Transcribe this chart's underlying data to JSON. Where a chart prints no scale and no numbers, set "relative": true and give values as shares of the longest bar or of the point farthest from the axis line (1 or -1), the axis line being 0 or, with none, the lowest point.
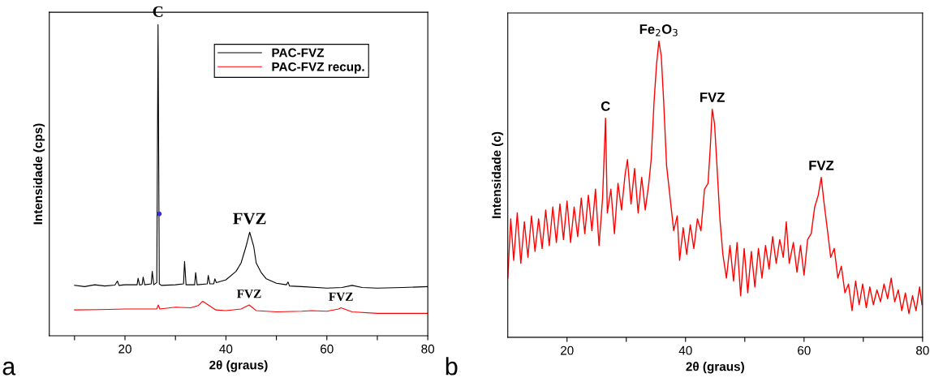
{
  "chart_data": [
    {
      "type": "line",
      "relative": true,
      "xlabel": "2θ (graus)",
      "ylabel": "Intensidade (cps)",
      "xlim": [
        5,
        80
      ],
      "xticks": [
        {
          "value": 10,
          "label": null
        },
        20,
        {
          "value": 30,
          "label": null
        },
        40,
        {
          "value": 50,
          "label": null
        },
        60,
        {
          "value": 70,
          "label": null
        },
        80
      ],
      "grid": false,
      "legend": "top right",
      "marker": "none",
      "line_style": "solid",
      "series": [
        {
          "name": "PAC-FVZ",
          "color": "#000000",
          "x": [
            10,
            12,
            14,
            16,
            18,
            18.5,
            18.8,
            20,
            22.4,
            22.6,
            22.9,
            23.4,
            23.6,
            23.9,
            25.2,
            25.4,
            25.7,
            26.3,
            26.55,
            26.8,
            27.2,
            30,
            31.6,
            31.8,
            32.1,
            33.8,
            34.0,
            34.3,
            36.3,
            36.5,
            36.8,
            37.6,
            37.8,
            38.1,
            40,
            42,
            43,
            44,
            44.7,
            45.5,
            46,
            47,
            48,
            50,
            52,
            52.3,
            52.6,
            55,
            60,
            63,
            65,
            67,
            70,
            75,
            80
          ],
          "values": [
            0.162,
            0.158,
            0.164,
            0.16,
            0.163,
            0.176,
            0.162,
            0.164,
            0.164,
            0.185,
            0.163,
            0.165,
            0.189,
            0.164,
            0.167,
            0.207,
            0.164,
            0.171,
            1.0,
            0.167,
            0.162,
            0.164,
            0.167,
            0.239,
            0.164,
            0.164,
            0.203,
            0.164,
            0.167,
            0.194,
            0.167,
            0.167,
            0.183,
            0.171,
            0.18,
            0.207,
            0.234,
            0.288,
            0.333,
            0.288,
            0.234,
            0.203,
            0.183,
            0.169,
            0.164,
            0.173,
            0.16,
            0.158,
            0.153,
            0.155,
            0.162,
            0.155,
            0.153,
            0.155,
            0.158
          ]
        },
        {
          "name": "PAC-FVZ recup.",
          "color": "#ff0000",
          "x": [
            10,
            15,
            20,
            26.3,
            26.6,
            26.9,
            30,
            33,
            34.5,
            35.4,
            36.5,
            38,
            40,
            43,
            44.6,
            46,
            50,
            55,
            57,
            60,
            62.3,
            62.8,
            65,
            70,
            80
          ],
          "values": [
            0.083,
            0.084,
            0.086,
            0.086,
            0.099,
            0.086,
            0.092,
            0.09,
            0.097,
            0.111,
            0.099,
            0.083,
            0.081,
            0.086,
            0.099,
            0.081,
            0.077,
            0.079,
            0.081,
            0.079,
            0.086,
            0.09,
            0.077,
            0.072,
            0.072
          ]
        },
        {
          "type": "scatter",
          "color": "#3333cc",
          "x": [
            26.8
          ],
          "values": [
            0.392
          ]
        }
      ],
      "annotations": [
        {
          "text": "C",
          "x": 26.55,
          "y": 1.0
        },
        {
          "text": "FVZ",
          "x": 44.7,
          "y": 0.333
        },
        {
          "text": "FVZ",
          "x": 44.6,
          "y": 0.099
        },
        {
          "text": "FVZ",
          "x": 62.8,
          "y": 0.09
        },
        "a"
      ]
    },
    {
      "type": "line",
      "relative": true,
      "xlabel": "2θ (graus)",
      "ylabel": "Intensidade (c)",
      "xlim": [
        10,
        80
      ],
      "xticks": [
        20,
        {
          "value": 30,
          "label": null
        },
        40,
        {
          "value": 50,
          "label": null
        },
        60,
        {
          "value": 70,
          "label": null
        },
        80
      ],
      "grid": false,
      "marker": "none",
      "line_style": "solid",
      "series": [
        {
          "color": "#ff0000",
          "x": [
            10.0,
            10.5,
            11.0,
            11.6,
            12.2,
            12.8,
            13.4,
            14.0,
            14.6,
            15.2,
            15.8,
            16.4,
            17.0,
            17.6,
            18.2,
            18.8,
            19.4,
            20.0,
            20.6,
            21.2,
            21.8,
            22.4,
            23.0,
            23.6,
            24.2,
            24.8,
            25.4,
            26.0,
            26.5,
            26.8,
            27.4,
            28.0,
            28.6,
            29.2,
            29.8,
            30.2,
            30.8,
            31.4,
            32.0,
            32.6,
            33.2,
            33.8,
            34.2,
            34.7,
            35.1,
            35.5,
            35.9,
            36.3,
            36.8,
            37.4,
            38.0,
            38.6,
            39.0,
            39.6,
            40.2,
            40.8,
            41.4,
            42.0,
            42.6,
            43.2,
            43.8,
            44.2,
            44.5,
            44.9,
            45.3,
            45.8,
            46.3,
            46.9,
            47.5,
            48.1,
            48.7,
            49.3,
            49.9,
            50.5,
            51.1,
            51.7,
            52.3,
            52.9,
            53.5,
            54.1,
            54.7,
            55.3,
            55.9,
            56.5,
            57.0,
            57.5,
            58.2,
            58.8,
            59.4,
            60.0,
            60.6,
            61.2,
            61.8,
            62.4,
            62.9,
            63.4,
            63.9,
            64.5,
            65.1,
            65.7,
            66.3,
            66.9,
            67.5,
            68.1,
            68.7,
            69.3,
            69.9,
            70.5,
            71.1,
            71.7,
            72.3,
            72.9,
            73.5,
            74.1,
            74.7,
            75.3,
            75.9,
            76.5,
            77.1,
            77.7,
            78.3,
            78.9,
            79.5,
            79.9
          ],
          "values": [
            0.2,
            0.4,
            0.26,
            0.42,
            0.25,
            0.39,
            0.27,
            0.41,
            0.29,
            0.4,
            0.3,
            0.43,
            0.31,
            0.44,
            0.32,
            0.45,
            0.33,
            0.46,
            0.32,
            0.44,
            0.34,
            0.47,
            0.35,
            0.48,
            0.36,
            0.5,
            0.31,
            0.47,
            0.74,
            0.42,
            0.5,
            0.35,
            0.52,
            0.43,
            0.55,
            0.6,
            0.45,
            0.57,
            0.42,
            0.54,
            0.43,
            0.52,
            0.6,
            0.8,
            0.92,
            1.0,
            0.95,
            0.8,
            0.58,
            0.47,
            0.36,
            0.41,
            0.26,
            0.37,
            0.28,
            0.38,
            0.3,
            0.4,
            0.36,
            0.5,
            0.52,
            0.65,
            0.77,
            0.72,
            0.58,
            0.4,
            0.28,
            0.2,
            0.31,
            0.19,
            0.32,
            0.14,
            0.3,
            0.15,
            0.29,
            0.17,
            0.3,
            0.2,
            0.31,
            0.23,
            0.34,
            0.25,
            0.33,
            0.27,
            0.39,
            0.25,
            0.32,
            0.22,
            0.31,
            0.21,
            0.33,
            0.35,
            0.44,
            0.48,
            0.54,
            0.45,
            0.37,
            0.27,
            0.3,
            0.2,
            0.24,
            0.15,
            0.18,
            0.09,
            0.19,
            0.11,
            0.18,
            0.1,
            0.17,
            0.11,
            0.16,
            0.12,
            0.18,
            0.13,
            0.2,
            0.12,
            0.16,
            0.09,
            0.15,
            0.08,
            0.14,
            0.09,
            0.17,
            0.11
          ]
        }
      ],
      "annotations": [
        {
          "text": "C",
          "x": 26.5,
          "y": 0.74
        },
        {
          "text": "Fe$_{2}$O$_{3}$",
          "x": 35.5,
          "y": 1.0
        },
        {
          "text": "FVZ",
          "x": 44.5,
          "y": 0.77
        },
        {
          "text": "FVZ",
          "x": 62.9,
          "y": 0.54
        },
        "b"
      ]
    }
  ]
}
